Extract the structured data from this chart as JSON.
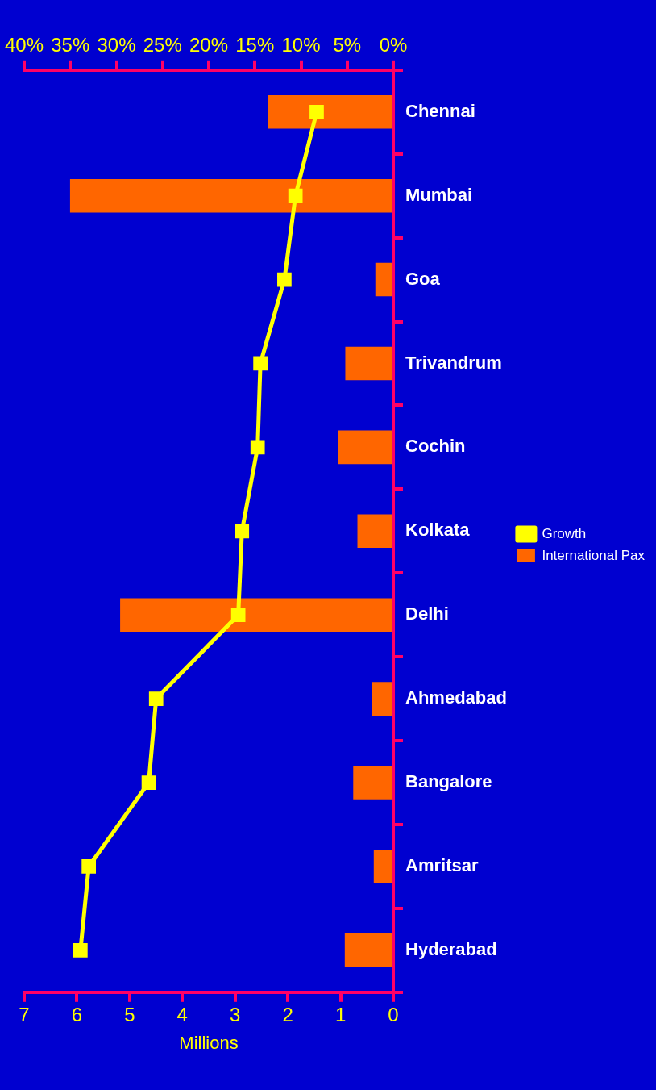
{
  "chart_data": {
    "type": "bar",
    "orientation": "horizontal",
    "categories": [
      "Chennai",
      "Mumbai",
      "Goa",
      "Trivandrum",
      "Cochin",
      "Kolkata",
      "Delhi",
      "Ahmedabad",
      "Bangalore",
      "Amritsar",
      "Hyderabad"
    ],
    "series": [
      {
        "name": "International Pax",
        "color": "#ff6600",
        "values": [
          2.38,
          6.13,
          0.34,
          0.91,
          1.05,
          0.68,
          5.18,
          0.41,
          0.76,
          0.37,
          0.92
        ]
      },
      {
        "name": "Growth",
        "type": "line",
        "axis": "x2",
        "color": "#ffff00",
        "values": [
          8.3,
          10.6,
          11.8,
          14.4,
          14.7,
          16.4,
          16.8,
          25.7,
          26.5,
          33.0,
          33.9
        ]
      }
    ],
    "xlabel": "Millions",
    "xlim": [
      7,
      0
    ],
    "xticks": [
      0,
      1,
      2,
      3,
      4,
      5,
      6,
      7
    ],
    "x2lim": [
      40,
      0
    ],
    "x2ticks": [
      {
        "value": 0,
        "label": "0%"
      },
      {
        "value": 5,
        "label": "5%"
      },
      {
        "value": 10,
        "label": "10%"
      },
      {
        "value": 15,
        "label": "15%"
      },
      {
        "value": 20,
        "label": "20%"
      },
      {
        "value": 25,
        "label": "25%"
      },
      {
        "value": 30,
        "label": "30%"
      },
      {
        "value": 35,
        "label": "35%"
      },
      {
        "value": 40,
        "label": "40%"
      }
    ],
    "legend": "right",
    "grid": false,
    "marker": "square",
    "line_style": "solid"
  }
}
